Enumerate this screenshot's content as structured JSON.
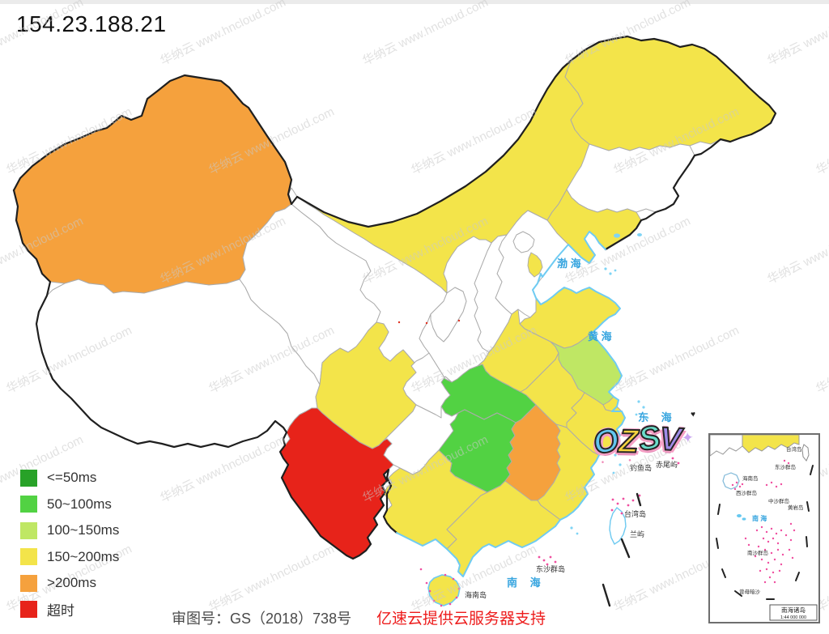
{
  "page": {
    "title": "154.23.188.21"
  },
  "legend": {
    "items": [
      {
        "label": "<=50ms",
        "level": "le50"
      },
      {
        "label": "50~100ms",
        "level": "r50_100"
      },
      {
        "label": "100~150ms",
        "level": "r100_150"
      },
      {
        "label": "150~200ms",
        "level": "r150_200"
      },
      {
        "label": ">200ms",
        "level": "gt200"
      },
      {
        "label": "超时",
        "level": "timeout"
      }
    ],
    "colors": {
      "le50": "#28a228",
      "r50_100": "#52d243",
      "r100_150": "#bfe764",
      "r150_200": "#f3e44a",
      "gt200": "#f5a13d",
      "timeout": "#e7231a",
      "nodata": "#ffffff"
    }
  },
  "map": {
    "provinces": [
      {
        "id": "xinjiang",
        "level": "gt200"
      },
      {
        "id": "xizang",
        "level": "nodata"
      },
      {
        "id": "qinghai",
        "level": "nodata"
      },
      {
        "id": "gansu",
        "level": "nodata"
      },
      {
        "id": "neimenggu",
        "level": "r150_200"
      },
      {
        "id": "heilongjiang",
        "level": "r150_200"
      },
      {
        "id": "jilin",
        "level": "nodata"
      },
      {
        "id": "liaoning",
        "level": "r150_200"
      },
      {
        "id": "hebei",
        "level": "nodata"
      },
      {
        "id": "beijing",
        "level": "nodata"
      },
      {
        "id": "tianjin",
        "level": "r150_200"
      },
      {
        "id": "shanxi",
        "level": "nodata"
      },
      {
        "id": "shaanxi",
        "level": "nodata"
      },
      {
        "id": "ningxia",
        "level": "nodata"
      },
      {
        "id": "shandong",
        "level": "r150_200"
      },
      {
        "id": "henan",
        "level": "r150_200"
      },
      {
        "id": "jiangsu",
        "level": "r100_150"
      },
      {
        "id": "anhui",
        "level": "r150_200"
      },
      {
        "id": "shanghai",
        "level": "r150_200"
      },
      {
        "id": "zhejiang",
        "level": "r150_200"
      },
      {
        "id": "hubei",
        "level": "r50_100"
      },
      {
        "id": "chongqing",
        "level": "nodata"
      },
      {
        "id": "sichuan",
        "level": "r150_200"
      },
      {
        "id": "guizhou",
        "level": "nodata"
      },
      {
        "id": "hunan",
        "level": "r50_100"
      },
      {
        "id": "jiangxi",
        "level": "gt200"
      },
      {
        "id": "fujian",
        "level": "r150_200"
      },
      {
        "id": "yunnan",
        "level": "timeout"
      },
      {
        "id": "guangxi",
        "level": "r150_200"
      },
      {
        "id": "guangdong",
        "level": "r150_200"
      },
      {
        "id": "hainan",
        "level": "r150_200"
      },
      {
        "id": "taiwan",
        "level": "nodata"
      }
    ],
    "sea_labels": [
      {
        "text": "渤 海"
      },
      {
        "text": "黄 海"
      },
      {
        "text": "东  海"
      },
      {
        "text": "南  海"
      }
    ],
    "island_labels": [
      {
        "text": "台湾岛"
      },
      {
        "text": "海南岛"
      },
      {
        "text": "东沙群岛"
      },
      {
        "text": "钓鱼岛"
      },
      {
        "text": "赤尾屿"
      },
      {
        "text": "兰屿"
      }
    ]
  },
  "inset": {
    "title": "南海诸岛",
    "scale": "1:44 000 000",
    "sea_label": "南 海",
    "labels": [
      {
        "text": "台湾岛"
      },
      {
        "text": "东沙群岛"
      },
      {
        "text": "海南岛"
      },
      {
        "text": "西沙群岛"
      },
      {
        "text": "中沙群岛"
      },
      {
        "text": "黄岩岛"
      },
      {
        "text": "南沙群岛"
      },
      {
        "text": "曾母暗沙"
      }
    ]
  },
  "captions": {
    "license": "审图号：GS（2018）738号",
    "sponsor": "亿速云提供云服务器支持"
  },
  "sticker": {
    "letters": [
      "O",
      "Z",
      "S",
      "V"
    ],
    "star": "✦",
    "hearts": "♥",
    "drips": "• •"
  },
  "watermark": {
    "text": "华纳云 www.hncloud.com"
  }
}
